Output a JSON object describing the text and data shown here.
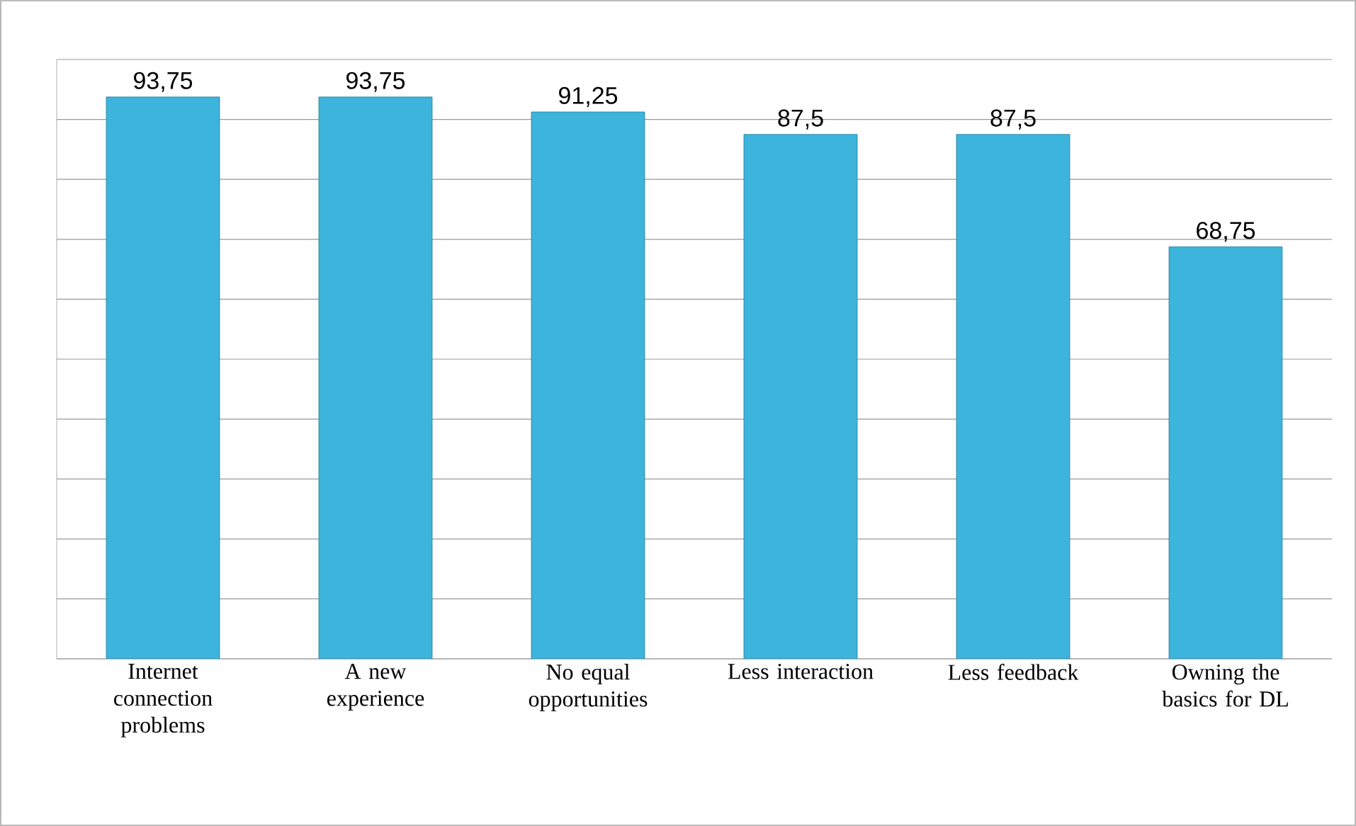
{
  "chart_data": {
    "type": "bar",
    "categories": [
      "Internet connection problems",
      "A new experience",
      "No equal opportunities",
      "Less interaction",
      "Less feedback",
      "Owning the basics for DL"
    ],
    "values": [
      93.75,
      93.75,
      91.25,
      87.5,
      87.5,
      68.75
    ],
    "value_labels": [
      "93,75",
      "93,75",
      "91,25",
      "87,5",
      "87,5",
      "68,75"
    ],
    "color": "#3cb4dc",
    "ylim": [
      0,
      100
    ],
    "yticks": [
      {
        "value": 0,
        "label": null
      },
      {
        "value": 10,
        "label": null
      },
      {
        "value": 20,
        "label": null
      },
      {
        "value": 30,
        "label": null
      },
      {
        "value": 40,
        "label": null
      },
      {
        "value": 50,
        "label": null
      },
      {
        "value": 60,
        "label": null
      },
      {
        "value": 70,
        "label": null
      },
      {
        "value": 80,
        "label": null
      },
      {
        "value": 90,
        "label": null
      },
      {
        "value": 100,
        "label": null
      }
    ],
    "tick_labels": "x",
    "grid": "y"
  }
}
